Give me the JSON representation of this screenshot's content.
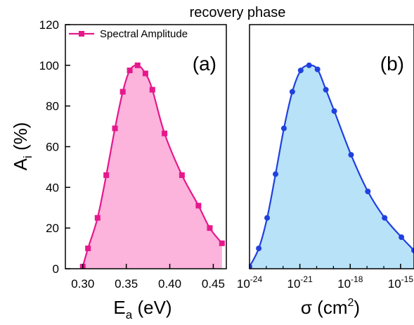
{
  "title": "recovery phase",
  "y_axis": {
    "label_main": "A",
    "label_sub": "i",
    "label_unit": " (%)",
    "ylim": [
      0,
      120
    ],
    "ticks": [
      0,
      20,
      40,
      60,
      80,
      100,
      120
    ],
    "tick_labels": [
      "0",
      "20",
      "40",
      "60",
      "80",
      "100",
      "120"
    ]
  },
  "chart_data": [
    {
      "type": "area",
      "panel_label": "(a)",
      "xlabel_main": "E",
      "xlabel_sub": "a",
      "xlabel_unit": " (eV)",
      "xlim": [
        0.28,
        0.465
      ],
      "x_ticks": [
        0.3,
        0.35,
        0.4,
        0.45
      ],
      "x_tick_labels": [
        "0.30",
        "0.35",
        "0.40",
        "0.45"
      ],
      "legend": {
        "placement": "top-left",
        "label": "Spectral Amplitude"
      },
      "line_color": "#e6188c",
      "fill_color": "#fcb3dc",
      "series": [
        {
          "name": "Spectral Amplitude",
          "marker": "square",
          "x": [
            0.3,
            0.306,
            0.317,
            0.327,
            0.337,
            0.346,
            0.354,
            0.363,
            0.372,
            0.38,
            0.394,
            0.414,
            0.433,
            0.446,
            0.46
          ],
          "y": [
            1,
            10,
            25,
            46,
            69,
            87,
            97.5,
            100,
            96,
            88,
            66.5,
            46,
            31,
            20,
            12.5
          ]
        }
      ]
    },
    {
      "type": "area",
      "panel_label": "(b)",
      "xlabel_main": "σ (cm",
      "xlabel_sup": "2",
      "xlabel_unit": ")",
      "xscale": "log",
      "xlim_log10": [
        -24,
        -14.2
      ],
      "x_ticks_log10": [
        -24,
        -21,
        -18,
        -15
      ],
      "x_tick_labels": [
        {
          "base": "10",
          "exp": "-24"
        },
        {
          "base": "10",
          "exp": "-21"
        },
        {
          "base": "10",
          "exp": "-18"
        },
        {
          "base": "10",
          "exp": "-15"
        }
      ],
      "line_color": "#2040e0",
      "fill_color": "#b7e2f8",
      "series": [
        {
          "name": "",
          "marker": "circle",
          "x_log10": [
            -24.0,
            -23.45,
            -22.95,
            -22.45,
            -21.95,
            -21.45,
            -20.95,
            -20.45,
            -19.95,
            -19.45,
            -18.95,
            -17.95,
            -16.95,
            -15.95,
            -14.95,
            -14.2
          ],
          "y": [
            1,
            10,
            25,
            46.5,
            69,
            87,
            97.5,
            100,
            98,
            88,
            77.5,
            56,
            38,
            25,
            15.5,
            9
          ]
        }
      ]
    }
  ]
}
